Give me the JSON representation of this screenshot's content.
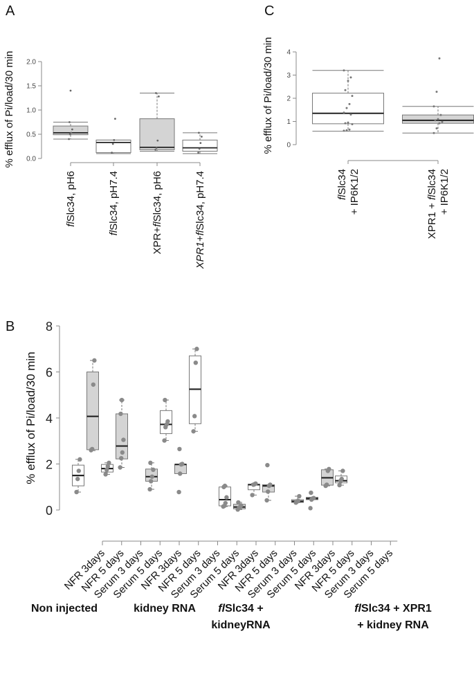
{
  "chart_data": [
    {
      "panel": "A",
      "type": "boxplot",
      "ylabel": "% efflux of Pi/load/30 min",
      "ylim": [
        0,
        2.0
      ],
      "yticks": [
        "0.0",
        "0.5",
        "1.0",
        "1.5",
        "2.0"
      ],
      "categories": [
        {
          "italic": "fl",
          "rest": "Slc34, pH6"
        },
        {
          "italic": "fl",
          "rest": "Slc34, pH7.4"
        },
        {
          "pre": "XPR+",
          "italic": "fl",
          "rest": "Slc34, pH6"
        },
        {
          "preItalic": "XPR1",
          "pre": "+",
          "italic": "fl",
          "rest": "Slc34, pH7.4"
        }
      ],
      "boxes": [
        {
          "q1": 0.49,
          "median": 0.53,
          "q3": 0.67,
          "low": 0.4,
          "high": 0.75,
          "fill": "#d4d4d4",
          "points": [
            0.4,
            0.5,
            0.53,
            0.6,
            0.75,
            1.4
          ]
        },
        {
          "q1": 0.12,
          "median": 0.33,
          "q3": 0.38,
          "low": 0.1,
          "high": 0.38,
          "fill": "#ffffff",
          "points": [
            0.12,
            0.3,
            0.38,
            0.82
          ]
        },
        {
          "q1": 0.18,
          "median": 0.23,
          "q3": 0.82,
          "low": 0.15,
          "high": 1.35,
          "fill": "#d4d4d4",
          "points": [
            0.18,
            0.22,
            0.37,
            1.28,
            1.35
          ]
        },
        {
          "q1": 0.15,
          "median": 0.22,
          "q3": 0.38,
          "low": 0.1,
          "high": 0.53,
          "fill": "#ffffff",
          "points": [
            0.12,
            0.2,
            0.32,
            0.45,
            0.53
          ]
        }
      ]
    },
    {
      "panel": "C",
      "type": "boxplot",
      "ylabel": "% efflux of Pi/load/30 min",
      "ylim": [
        0,
        4
      ],
      "yticks": [
        "0",
        "1",
        "2",
        "3",
        "4"
      ],
      "categories": [
        {
          "line1Italic": "fl",
          "line1": "Slc34",
          "line2": "+ IP6K1/2"
        },
        {
          "line1Pre": "XPR1 + ",
          "line1Italic": "fl",
          "line1": "Slc34",
          "line2": "+ IP6K1/2"
        }
      ],
      "boxes": [
        {
          "q1": 0.9,
          "median": 1.35,
          "q3": 2.22,
          "low": 0.58,
          "high": 3.2,
          "fill": "#ffffff",
          "points": [
            0.6,
            0.62,
            0.65,
            0.88,
            0.92,
            0.95,
            1.3,
            1.38,
            1.58,
            1.75,
            2.1,
            2.35,
            2.75,
            2.9,
            3.2
          ]
        },
        {
          "q1": 0.92,
          "median": 1.05,
          "q3": 1.28,
          "low": 0.5,
          "high": 1.65,
          "fill": "#d4d4d4",
          "points": [
            0.5,
            0.7,
            0.92,
            0.98,
            1.05,
            1.1,
            1.28,
            1.65,
            2.28,
            3.72
          ]
        }
      ]
    },
    {
      "panel": "B",
      "type": "boxplot",
      "ylabel": "% efflux of Pi/load/30 min",
      "ylim": [
        0,
        8
      ],
      "yticks": [
        "0",
        "2",
        "4",
        "6",
        "8"
      ],
      "categories": [
        "NFR 3days",
        "NFR 5 days",
        "Serum 3 days",
        "Serum 5 days",
        "NFR 3days",
        "NFR 5 days",
        "Serum 3 days",
        "Serum 5 days",
        "NFR 3days",
        "NFR 5 days",
        "Serum 3 days",
        "Serum 5 days",
        "NFR 3days",
        "NFR 5 days",
        "Serum 3 days",
        "Serum 5 days"
      ],
      "groups": [
        {
          "line1": "Non injected"
        },
        {
          "line1": "kidney RNA"
        },
        {
          "line1Italic": "fl",
          "line1": "Slc34 +",
          "line2": "kidneyRNA"
        },
        {
          "line1Italic": "fl",
          "line1": "Slc34 + XPR1",
          "line2": "+ kidney RNA"
        }
      ],
      "boxes": [
        {
          "q1": 1.05,
          "median": 1.5,
          "q3": 1.95,
          "low": 0.78,
          "high": 2.2,
          "fill": "#ffffff",
          "points": [
            0.78,
            1.35,
            1.7,
            2.2
          ]
        },
        {
          "q1": 2.62,
          "median": 4.07,
          "q3": 6.0,
          "low": 2.58,
          "high": 6.5,
          "fill": "#d4d4d4",
          "points": [
            2.6,
            2.65,
            5.45,
            6.5
          ]
        },
        {
          "q1": 1.65,
          "median": 1.8,
          "q3": 1.98,
          "low": 1.55,
          "high": 2.05,
          "fill": "#ffffff",
          "points": [
            1.55,
            1.75,
            1.9,
            2.05
          ]
        },
        {
          "q1": 2.22,
          "median": 2.78,
          "q3": 4.18,
          "low": 1.85,
          "high": 4.78,
          "fill": "#d4d4d4",
          "points": [
            1.85,
            2.25,
            2.5,
            3.05,
            4.18,
            4.78
          ]
        },
        {
          "q1": 1.25,
          "median": 1.45,
          "q3": 1.78,
          "low": 0.9,
          "high": 2.05,
          "fill": "#d4d4d4",
          "points": [
            0.9,
            1.25,
            1.45,
            1.75,
            2.05
          ]
        },
        {
          "q1": 3.32,
          "median": 3.72,
          "q3": 4.32,
          "low": 3.02,
          "high": 4.78,
          "fill": "#ffffff",
          "points": [
            3.02,
            3.6,
            3.72,
            3.85,
            4.78
          ]
        },
        {
          "q1": 1.58,
          "median": 1.98,
          "q3": 1.98,
          "low": 1.58,
          "high": 1.98,
          "fill": "#d4d4d4",
          "points": [
            0.78,
            1.58,
            1.98,
            2.0,
            2.65
          ]
        },
        {
          "q1": 3.75,
          "median": 5.25,
          "q3": 6.7,
          "low": 3.42,
          "high": 7.0,
          "fill": "#ffffff",
          "points": [
            3.42,
            4.08,
            6.4,
            7.0
          ]
        },
        {
          "q1": 0.18,
          "median": 0.45,
          "q3": 1.0,
          "low": 0.15,
          "high": 1.05,
          "fill": "#ffffff",
          "points": [
            0.15,
            0.18,
            0.3,
            0.55,
            1.0,
            1.05
          ]
        },
        {
          "q1": 0.05,
          "median": 0.13,
          "q3": 0.25,
          "low": 0.02,
          "high": 0.33,
          "fill": "#d4d4d4",
          "points": [
            0.02,
            0.08,
            0.13,
            0.2,
            0.33
          ]
        },
        {
          "q1": 0.88,
          "median": 1.1,
          "q3": 1.12,
          "low": 0.65,
          "high": 1.15,
          "fill": "#ffffff",
          "points": [
            0.65,
            1.1,
            1.12,
            1.15
          ]
        },
        {
          "q1": 0.78,
          "median": 1.05,
          "q3": 1.1,
          "low": 0.42,
          "high": 1.1,
          "fill": "#d4d4d4",
          "points": [
            0.42,
            0.8,
            1.05,
            1.1,
            1.95
          ]
        },
        {
          "q1": 0.33,
          "median": 0.38,
          "q3": 0.45,
          "low": 0.32,
          "high": 0.6,
          "fill": "#ffffff",
          "points": [
            0.32,
            0.36,
            0.4,
            0.6
          ]
        },
        {
          "q1": 0.45,
          "median": 0.5,
          "q3": 0.55,
          "low": 0.45,
          "high": 0.55,
          "fill": "#d4d4d4",
          "points": [
            0.08,
            0.45,
            0.5,
            0.52,
            0.75
          ]
        },
        {
          "q1": 1.08,
          "median": 1.4,
          "q3": 1.75,
          "low": 1.05,
          "high": 1.78,
          "fill": "#d4d4d4",
          "points": [
            1.05,
            1.1,
            1.7,
            1.78
          ]
        },
        {
          "q1": 1.18,
          "median": 1.27,
          "q3": 1.48,
          "low": 1.08,
          "high": 1.7,
          "fill": "#ffffff",
          "points": [
            1.08,
            1.27,
            1.35,
            1.7
          ]
        }
      ]
    }
  ]
}
